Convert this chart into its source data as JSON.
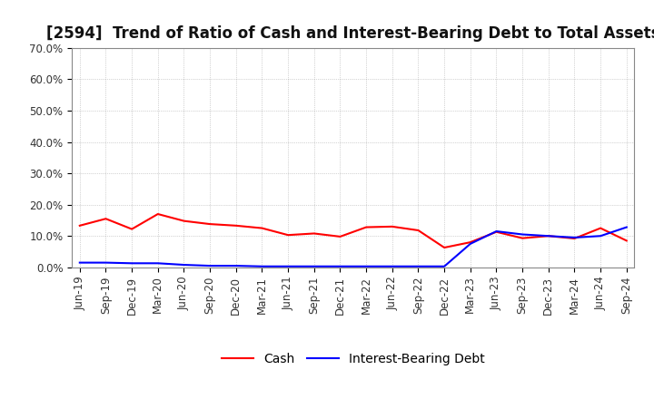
{
  "title": "[2594]  Trend of Ratio of Cash and Interest-Bearing Debt to Total Assets",
  "x_labels": [
    "Jun-19",
    "Sep-19",
    "Dec-19",
    "Mar-20",
    "Jun-20",
    "Sep-20",
    "Dec-20",
    "Mar-21",
    "Jun-21",
    "Sep-21",
    "Dec-21",
    "Mar-22",
    "Jun-22",
    "Sep-22",
    "Dec-22",
    "Mar-23",
    "Jun-23",
    "Sep-23",
    "Dec-23",
    "Mar-24",
    "Jun-24",
    "Sep-24"
  ],
  "cash": [
    0.133,
    0.155,
    0.122,
    0.17,
    0.148,
    0.138,
    0.133,
    0.125,
    0.103,
    0.108,
    0.098,
    0.128,
    0.13,
    0.118,
    0.063,
    0.08,
    0.113,
    0.093,
    0.1,
    0.092,
    0.125,
    0.085
  ],
  "debt": [
    0.015,
    0.015,
    0.013,
    0.013,
    0.008,
    0.005,
    0.005,
    0.003,
    0.003,
    0.003,
    0.003,
    0.003,
    0.003,
    0.003,
    0.003,
    0.075,
    0.115,
    0.105,
    0.1,
    0.095,
    0.1,
    0.128
  ],
  "cash_color": "#ff0000",
  "debt_color": "#0000ff",
  "ylim": [
    0.0,
    0.7
  ],
  "yticks": [
    0.0,
    0.1,
    0.2,
    0.3,
    0.4,
    0.5,
    0.6,
    0.7
  ],
  "ytick_labels": [
    "0.0%",
    "10.0%",
    "20.0%",
    "30.0%",
    "40.0%",
    "50.0%",
    "60.0%",
    "70.0%"
  ],
  "bg_color": "#ffffff",
  "plot_bg_color": "#ffffff",
  "grid_color": "#999999",
  "legend_cash": "Cash",
  "legend_debt": "Interest-Bearing Debt",
  "title_fontsize": 12,
  "axis_fontsize": 8.5,
  "legend_fontsize": 10
}
